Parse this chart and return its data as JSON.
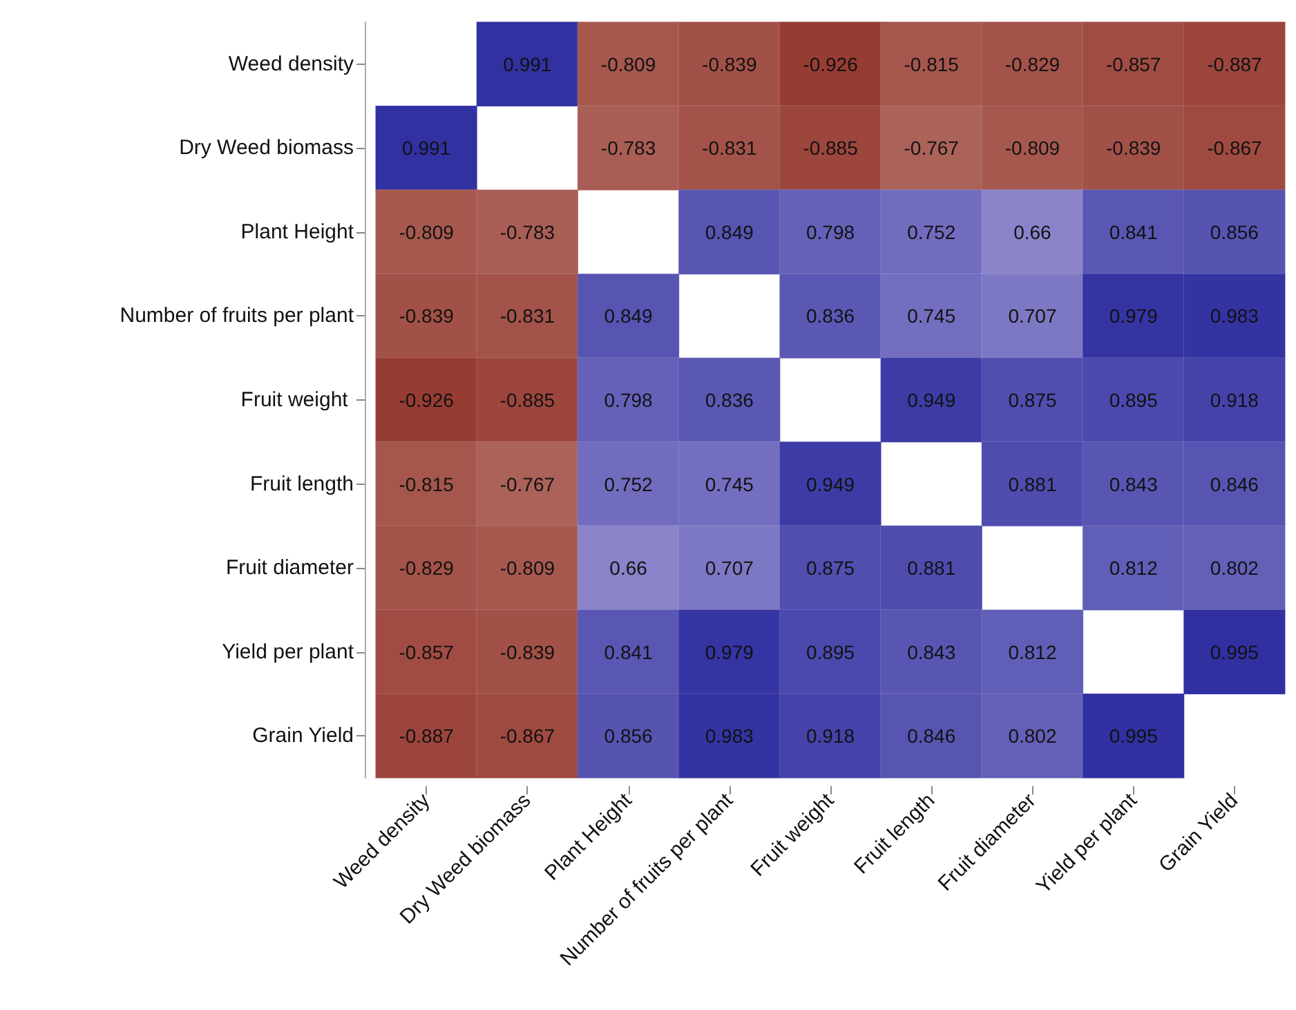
{
  "chart_data": {
    "type": "heatmap",
    "categories": [
      "Weed density",
      "Dry Weed biomass",
      "Plant Height",
      "Number of fruits per plant",
      "Fruit weight",
      "Fruit length",
      "Fruit diameter",
      "Yield per plant",
      "Grain Yield"
    ],
    "y_categories": [
      "Weed density",
      "Dry Weed biomass",
      "Plant Height",
      "Number of fruits per plant",
      "Fruit weight ",
      "Fruit length",
      "Fruit diameter",
      "Yield per plant",
      "Grain Yield"
    ],
    "cells": [
      [
        null,
        0.991,
        -0.809,
        -0.839,
        -0.926,
        -0.815,
        -0.829,
        -0.857,
        -0.887
      ],
      [
        0.991,
        null,
        -0.783,
        -0.831,
        -0.885,
        -0.767,
        -0.809,
        -0.839,
        -0.867
      ],
      [
        -0.809,
        -0.783,
        null,
        0.849,
        0.798,
        0.752,
        0.66,
        0.841,
        0.856
      ],
      [
        -0.839,
        -0.831,
        0.849,
        null,
        0.836,
        0.745,
        0.707,
        0.979,
        0.983
      ],
      [
        -0.926,
        -0.885,
        0.798,
        0.836,
        null,
        0.949,
        0.875,
        0.895,
        0.918
      ],
      [
        -0.815,
        -0.767,
        0.752,
        0.745,
        0.949,
        null,
        0.881,
        0.843,
        0.846
      ],
      [
        -0.829,
        -0.809,
        0.66,
        0.707,
        0.875,
        0.881,
        null,
        0.812,
        0.802
      ],
      [
        -0.857,
        -0.839,
        0.841,
        0.979,
        0.895,
        0.843,
        0.812,
        null,
        0.995
      ],
      [
        -0.887,
        -0.867,
        0.856,
        0.983,
        0.918,
        0.846,
        0.802,
        0.995,
        null
      ]
    ],
    "data_labels": true
  }
}
